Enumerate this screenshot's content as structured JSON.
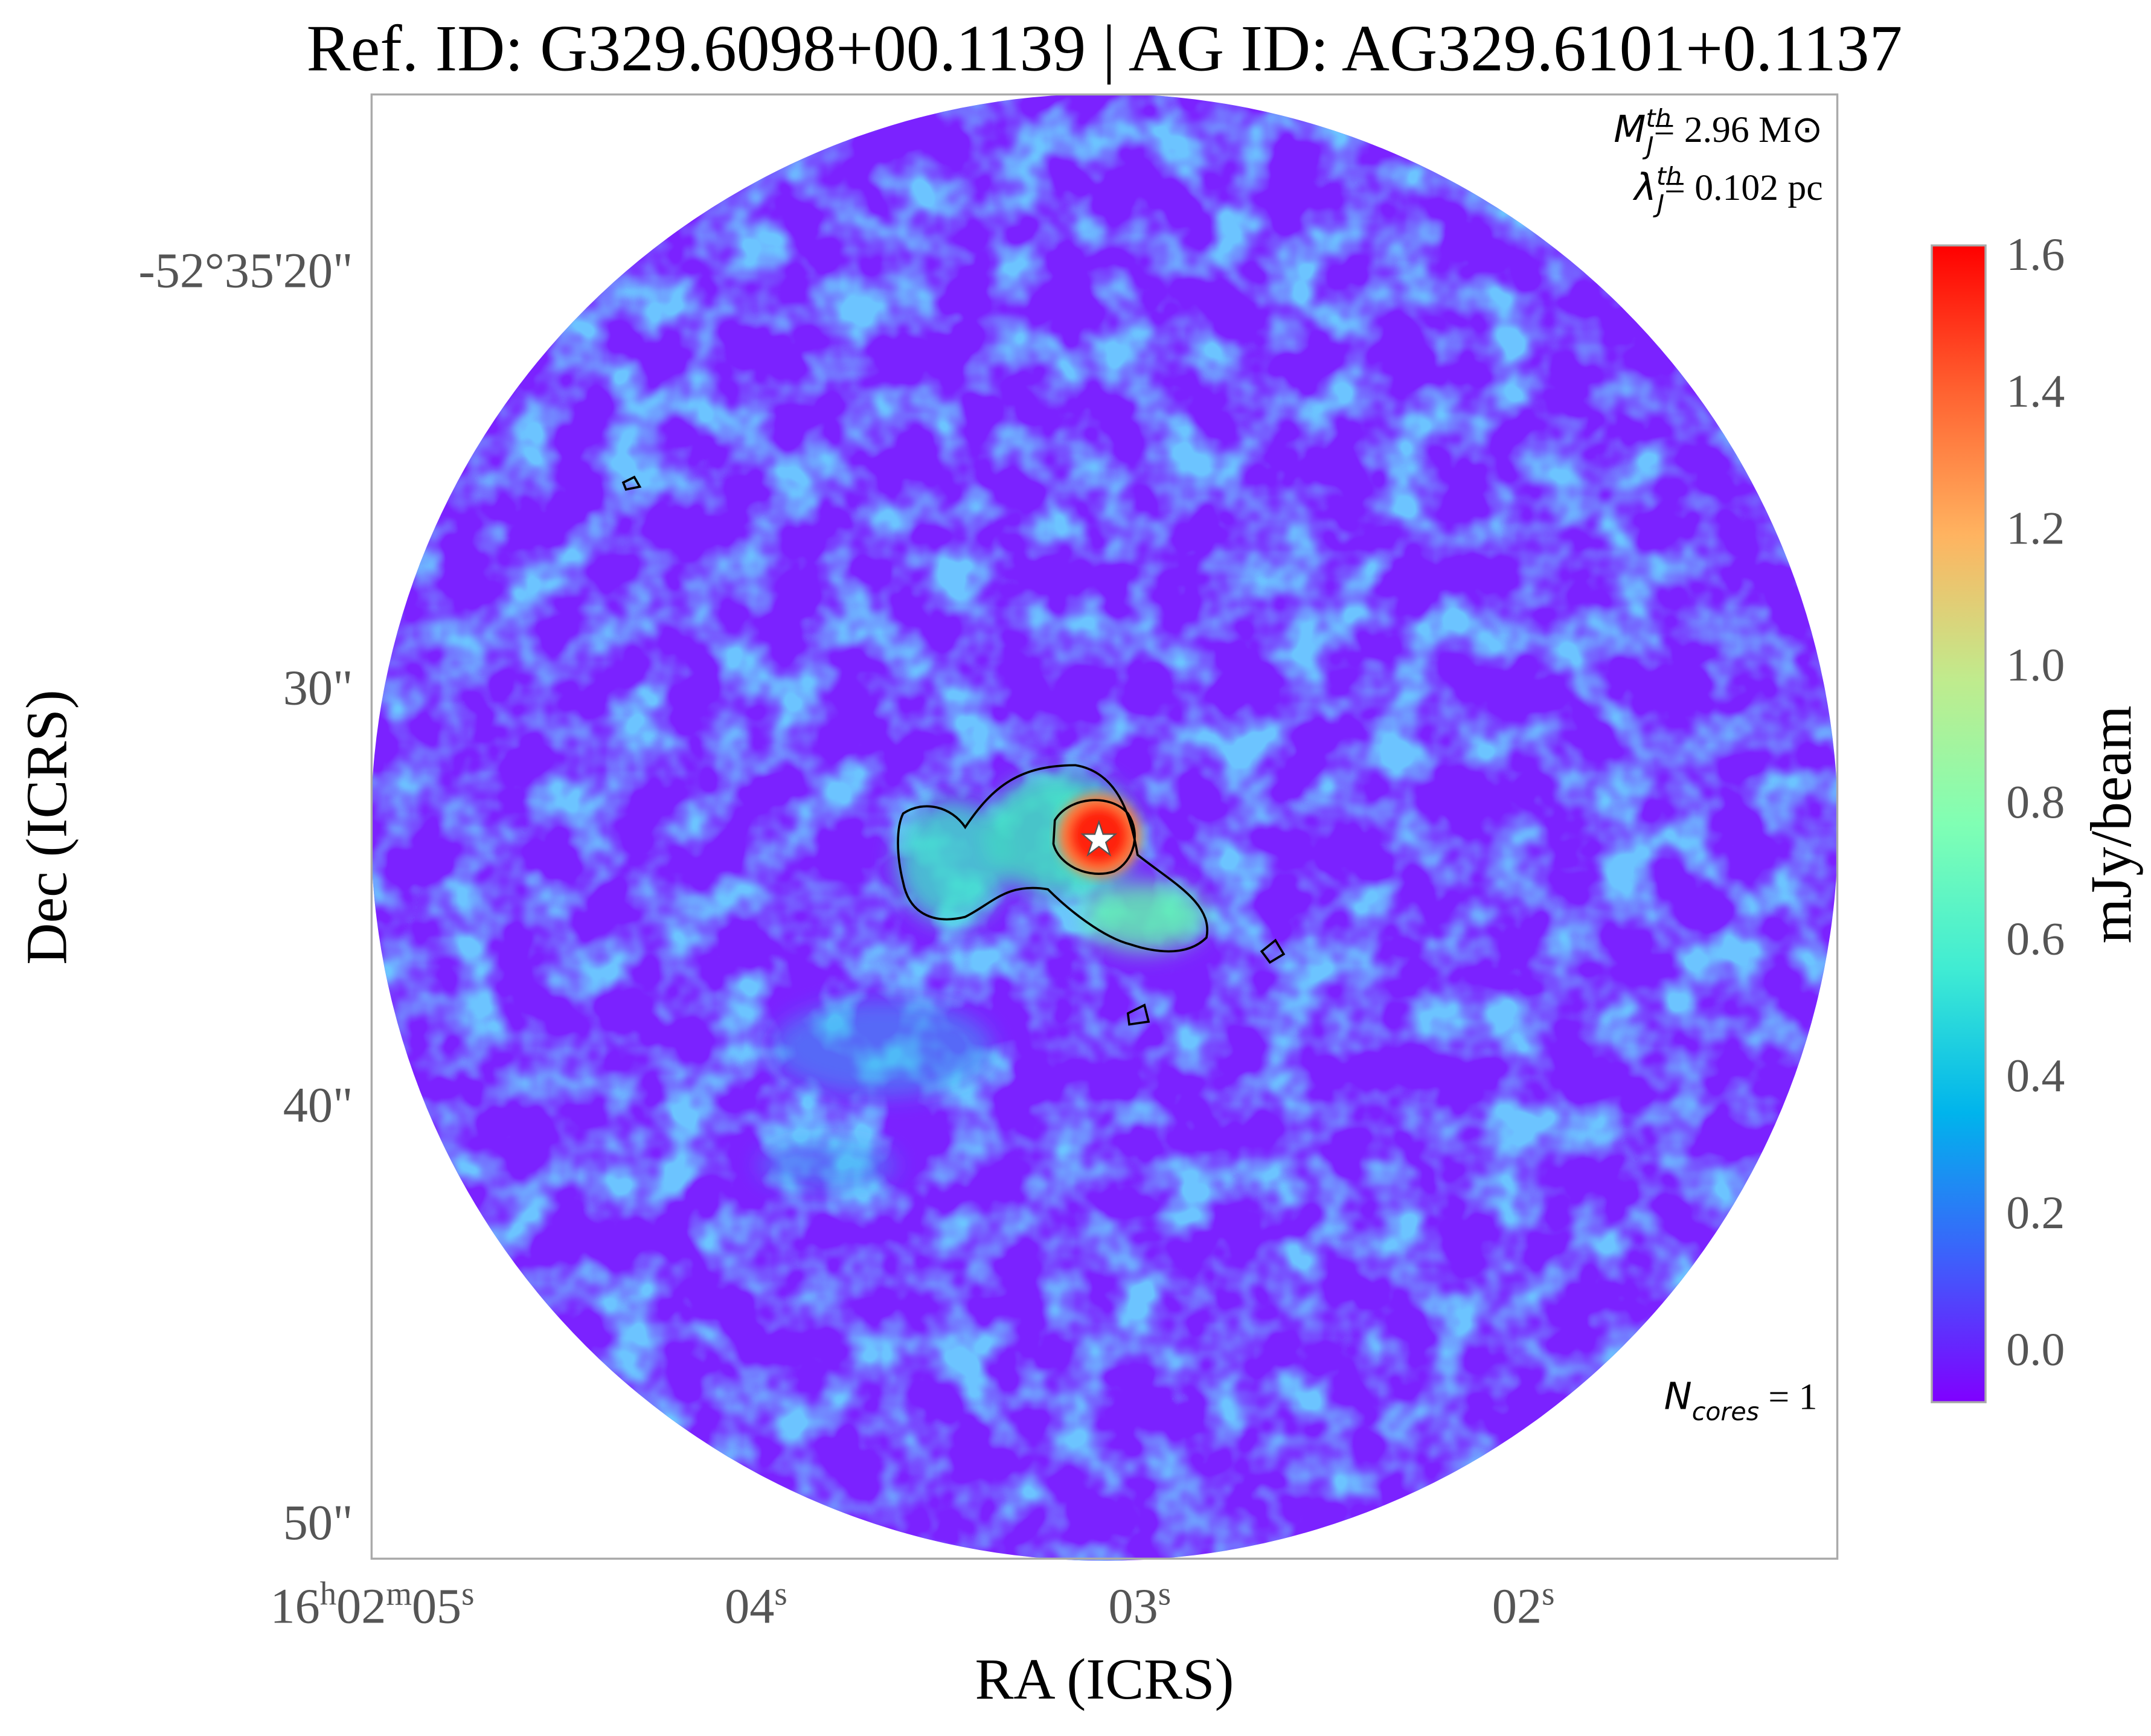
{
  "chart_data": {
    "type": "image",
    "title": "Ref. ID: G329.6098+00.1139 | AG ID: AG329.6101+0.1137",
    "x_label": "RA (ICRS)",
    "y_label": "Dec (ICRS)",
    "xlim": [
      5,
      1.18
    ],
    "xticks": [
      {
        "value": 5,
        "label": "16h02m05s"
      },
      {
        "value": 4,
        "label": "04s"
      },
      {
        "value": 3,
        "label": "03s"
      },
      {
        "value": 2,
        "label": "02s"
      }
    ],
    "ylim": [
      15.64,
      50.76
    ],
    "yticks": [
      {
        "value": 20,
        "label": "-52°35'20\""
      },
      {
        "value": 30,
        "label": "30\""
      },
      {
        "value": 40,
        "label": "40\""
      },
      {
        "value": 50,
        "label": "50\""
      }
    ],
    "colormap": "rainbow",
    "colorbar_label": "mJy/beam",
    "clim": [
      -0.07,
      1.62
    ],
    "cticks": [
      {
        "value": 0,
        "label": "0.0"
      },
      0.2,
      0.4,
      0.6,
      0.8,
      {
        "value": 1,
        "label": "1.0"
      },
      1.2,
      1.4,
      1.6
    ],
    "annotations": {
      "jeans_mass": {
        "symbol": "M",
        "sub": "J",
        "sup": "th",
        "text": "= 2.96 M⊙"
      },
      "jeans_length": {
        "symbol": "λ",
        "sub": "J",
        "sup": "th",
        "text": "= 0.102 pc"
      },
      "n_cores": {
        "symbol": "N",
        "sub": "cores",
        "text": " = 1"
      }
    }
  }
}
